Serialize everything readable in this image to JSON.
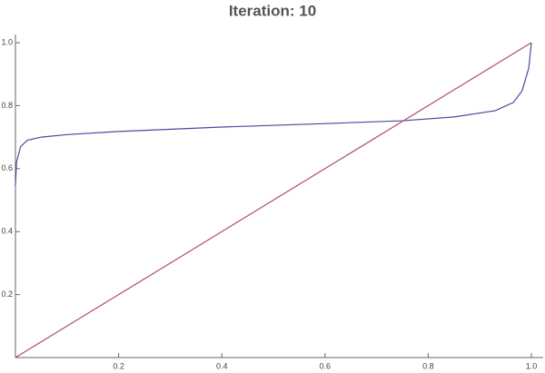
{
  "chart_data": {
    "type": "line",
    "title": "Iteration: 10",
    "x": [
      0,
      0.002,
      0.01,
      0.023,
      0.05,
      0.1,
      0.2,
      0.4,
      0.6,
      0.75,
      0.85,
      0.93,
      0.965,
      0.982,
      0.995,
      1
    ],
    "series": [
      {
        "color": "#4a4a9c",
        "values": [
          0.545,
          0.62,
          0.67,
          0.69,
          0.7,
          0.708,
          0.718,
          0.732,
          0.743,
          0.752,
          0.764,
          0.784,
          0.81,
          0.847,
          0.92,
          1
        ]
      },
      {
        "color": "#b04a6c",
        "values": [
          0,
          0.002,
          0.01,
          0.023,
          0.05,
          0.1,
          0.2,
          0.4,
          0.6,
          0.75,
          0.85,
          0.93,
          0.965,
          0.982,
          0.995,
          1
        ]
      }
    ],
    "xlim": [
      0,
      1
    ],
    "ylim": [
      0,
      1
    ],
    "xticks": [
      0.2,
      0.4,
      0.6,
      0.8,
      {
        "value": 1,
        "label": "1.0"
      }
    ],
    "yticks": [
      0.2,
      0.4,
      0.6,
      0.8,
      {
        "value": 1,
        "label": "1.0"
      }
    ],
    "grid": false
  }
}
